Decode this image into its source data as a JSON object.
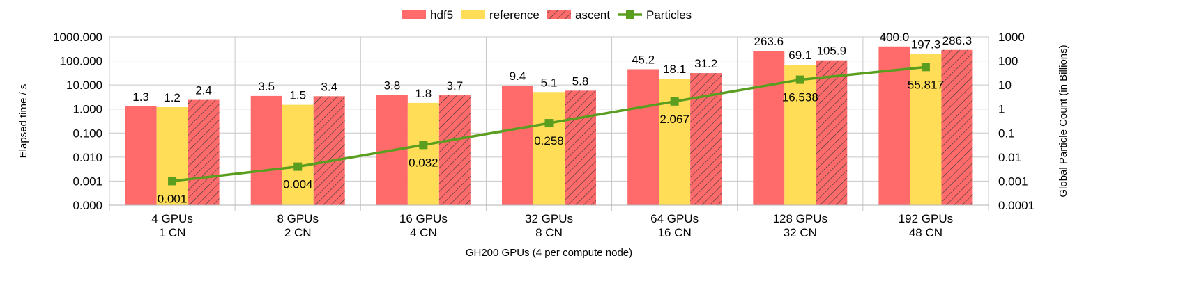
{
  "chart_data": {
    "type": "bar",
    "categories": [
      [
        "4 GPUs",
        "1 CN"
      ],
      [
        "8 GPUs",
        "2 CN"
      ],
      [
        "16 GPUs",
        "4 CN"
      ],
      [
        "32 GPUs",
        "8 CN"
      ],
      [
        "64 GPUs",
        "16 CN"
      ],
      [
        "128 GPUs",
        "32 CN"
      ],
      [
        "192 GPUs",
        "48 CN"
      ]
    ],
    "series": [
      {
        "name": "hdf5",
        "kind": "bar",
        "axis": "left",
        "color": "#ff6b6b",
        "values": [
          1.3,
          3.5,
          3.8,
          9.4,
          45.2,
          263.6,
          400.0
        ],
        "labels": [
          "1.3",
          "3.5",
          "3.8",
          "9.4",
          "45.2",
          "263.6",
          "400.0"
        ]
      },
      {
        "name": "reference",
        "kind": "bar",
        "axis": "left",
        "color": "#ffdd57",
        "values": [
          1.2,
          1.5,
          1.8,
          5.1,
          18.1,
          69.1,
          197.3
        ],
        "labels": [
          "1.2",
          "1.5",
          "1.8",
          "5.1",
          "18.1",
          "69.1",
          "197.3"
        ]
      },
      {
        "name": "ascent",
        "kind": "bar",
        "axis": "left",
        "color": "#ff6b6b",
        "pattern": "hatch",
        "values": [
          2.4,
          3.4,
          3.7,
          5.8,
          31.2,
          105.9,
          286.3
        ],
        "labels": [
          "2.4",
          "3.4",
          "3.7",
          "5.8",
          "31.2",
          "105.9",
          "286.3"
        ]
      },
      {
        "name": "Particles",
        "kind": "line",
        "axis": "right",
        "color": "#5a9e1f",
        "values": [
          0.001,
          0.004,
          0.032,
          0.258,
          2.067,
          16.538,
          55.817
        ],
        "labels": [
          "0.001",
          "0.004",
          "0.032",
          "0.258",
          "2.067",
          "16.538",
          "55.817"
        ]
      }
    ],
    "xlabel": "GH200 GPUs (4 per compute node)",
    "ylabel": "Elapsed time / s",
    "y2label": "Global Particle Count (in Billions)",
    "yscale": "log",
    "ylim": [
      0.0001,
      1000
    ],
    "y_ticks": [
      0.0001,
      0.001,
      0.01,
      0.1,
      1,
      10,
      100,
      1000
    ],
    "y_tick_labels": [
      "0.000",
      "0.001",
      "0.010",
      "0.100",
      "1.000",
      "10.000",
      "100.000",
      "1000.000"
    ],
    "y2scale": "log",
    "y2lim": [
      0.0001,
      1000
    ],
    "y2_tick_labels": [
      "0.0001",
      "0.001",
      "0.01",
      "0.1",
      "1",
      "10",
      "100",
      "1000"
    ],
    "grid": true,
    "legend_position": "top-center"
  }
}
